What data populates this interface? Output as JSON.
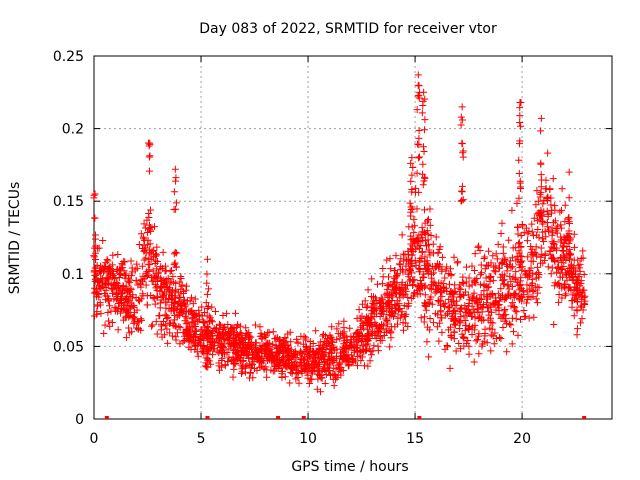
{
  "chart_data": {
    "type": "scatter",
    "title": "Day 083 of 2022, SRMTID for receiver vtor",
    "xlabel": "GPS time / hours",
    "ylabel": "SRMTID / TECUs",
    "xlim": [
      0,
      24.2
    ],
    "ylim": [
      0,
      0.25
    ],
    "xticks": [
      0,
      5,
      10,
      15,
      20
    ],
    "yticks": [
      0,
      0.05,
      0.1,
      0.15,
      0.2,
      0.25
    ],
    "xtick_labels": [
      "0",
      "5",
      "10",
      "15",
      "20"
    ],
    "ytick_labels": [
      "0",
      "0.05",
      "0.1",
      "0.15",
      "0.2",
      "0.25"
    ],
    "grid": true,
    "marker": "+",
    "color": "#ff0000",
    "zero_markers_x": [
      0.6,
      5.3,
      8.6,
      9.8,
      15.2,
      22.9
    ],
    "trend": {
      "x": [
        0,
        0.5,
        1,
        1.5,
        2,
        2.5,
        3,
        3.5,
        4,
        4.5,
        5,
        5.5,
        6,
        6.5,
        7,
        7.5,
        8,
        8.5,
        9,
        9.5,
        10,
        10.5,
        11,
        11.5,
        12,
        12.5,
        13,
        13.5,
        14,
        14.5,
        15,
        15.5,
        16,
        16.5,
        17,
        17.5,
        18,
        18.5,
        19,
        19.5,
        20,
        20.5,
        21,
        21.5,
        22,
        22.5,
        23
      ],
      "y": [
        0.095,
        0.09,
        0.092,
        0.085,
        0.08,
        0.11,
        0.09,
        0.08,
        0.075,
        0.065,
        0.058,
        0.056,
        0.055,
        0.05,
        0.048,
        0.045,
        0.045,
        0.045,
        0.043,
        0.042,
        0.042,
        0.04,
        0.043,
        0.045,
        0.05,
        0.058,
        0.065,
        0.075,
        0.085,
        0.09,
        0.115,
        0.1,
        0.095,
        0.08,
        0.075,
        0.07,
        0.085,
        0.08,
        0.085,
        0.09,
        0.1,
        0.105,
        0.13,
        0.12,
        0.11,
        0.095,
        0.085
      ],
      "spread": [
        0.025,
        0.025,
        0.025,
        0.025,
        0.03,
        0.04,
        0.035,
        0.03,
        0.025,
        0.02,
        0.02,
        0.02,
        0.02,
        0.018,
        0.018,
        0.017,
        0.017,
        0.017,
        0.017,
        0.017,
        0.018,
        0.018,
        0.018,
        0.018,
        0.02,
        0.022,
        0.025,
        0.025,
        0.03,
        0.035,
        0.05,
        0.045,
        0.04,
        0.035,
        0.035,
        0.035,
        0.04,
        0.04,
        0.04,
        0.04,
        0.045,
        0.045,
        0.05,
        0.045,
        0.04,
        0.03,
        0.025
      ]
    },
    "peaks": [
      {
        "x": 0.05,
        "y": 0.155
      },
      {
        "x": 2.6,
        "y": 0.19
      },
      {
        "x": 3.8,
        "y": 0.172
      },
      {
        "x": 5.3,
        "y": 0.11
      },
      {
        "x": 14.85,
        "y": 0.18
      },
      {
        "x": 15.15,
        "y": 0.237
      },
      {
        "x": 15.4,
        "y": 0.225
      },
      {
        "x": 17.2,
        "y": 0.215
      },
      {
        "x": 19.9,
        "y": 0.218
      },
      {
        "x": 20.9,
        "y": 0.207
      },
      {
        "x": 22.2,
        "y": 0.17
      }
    ]
  }
}
